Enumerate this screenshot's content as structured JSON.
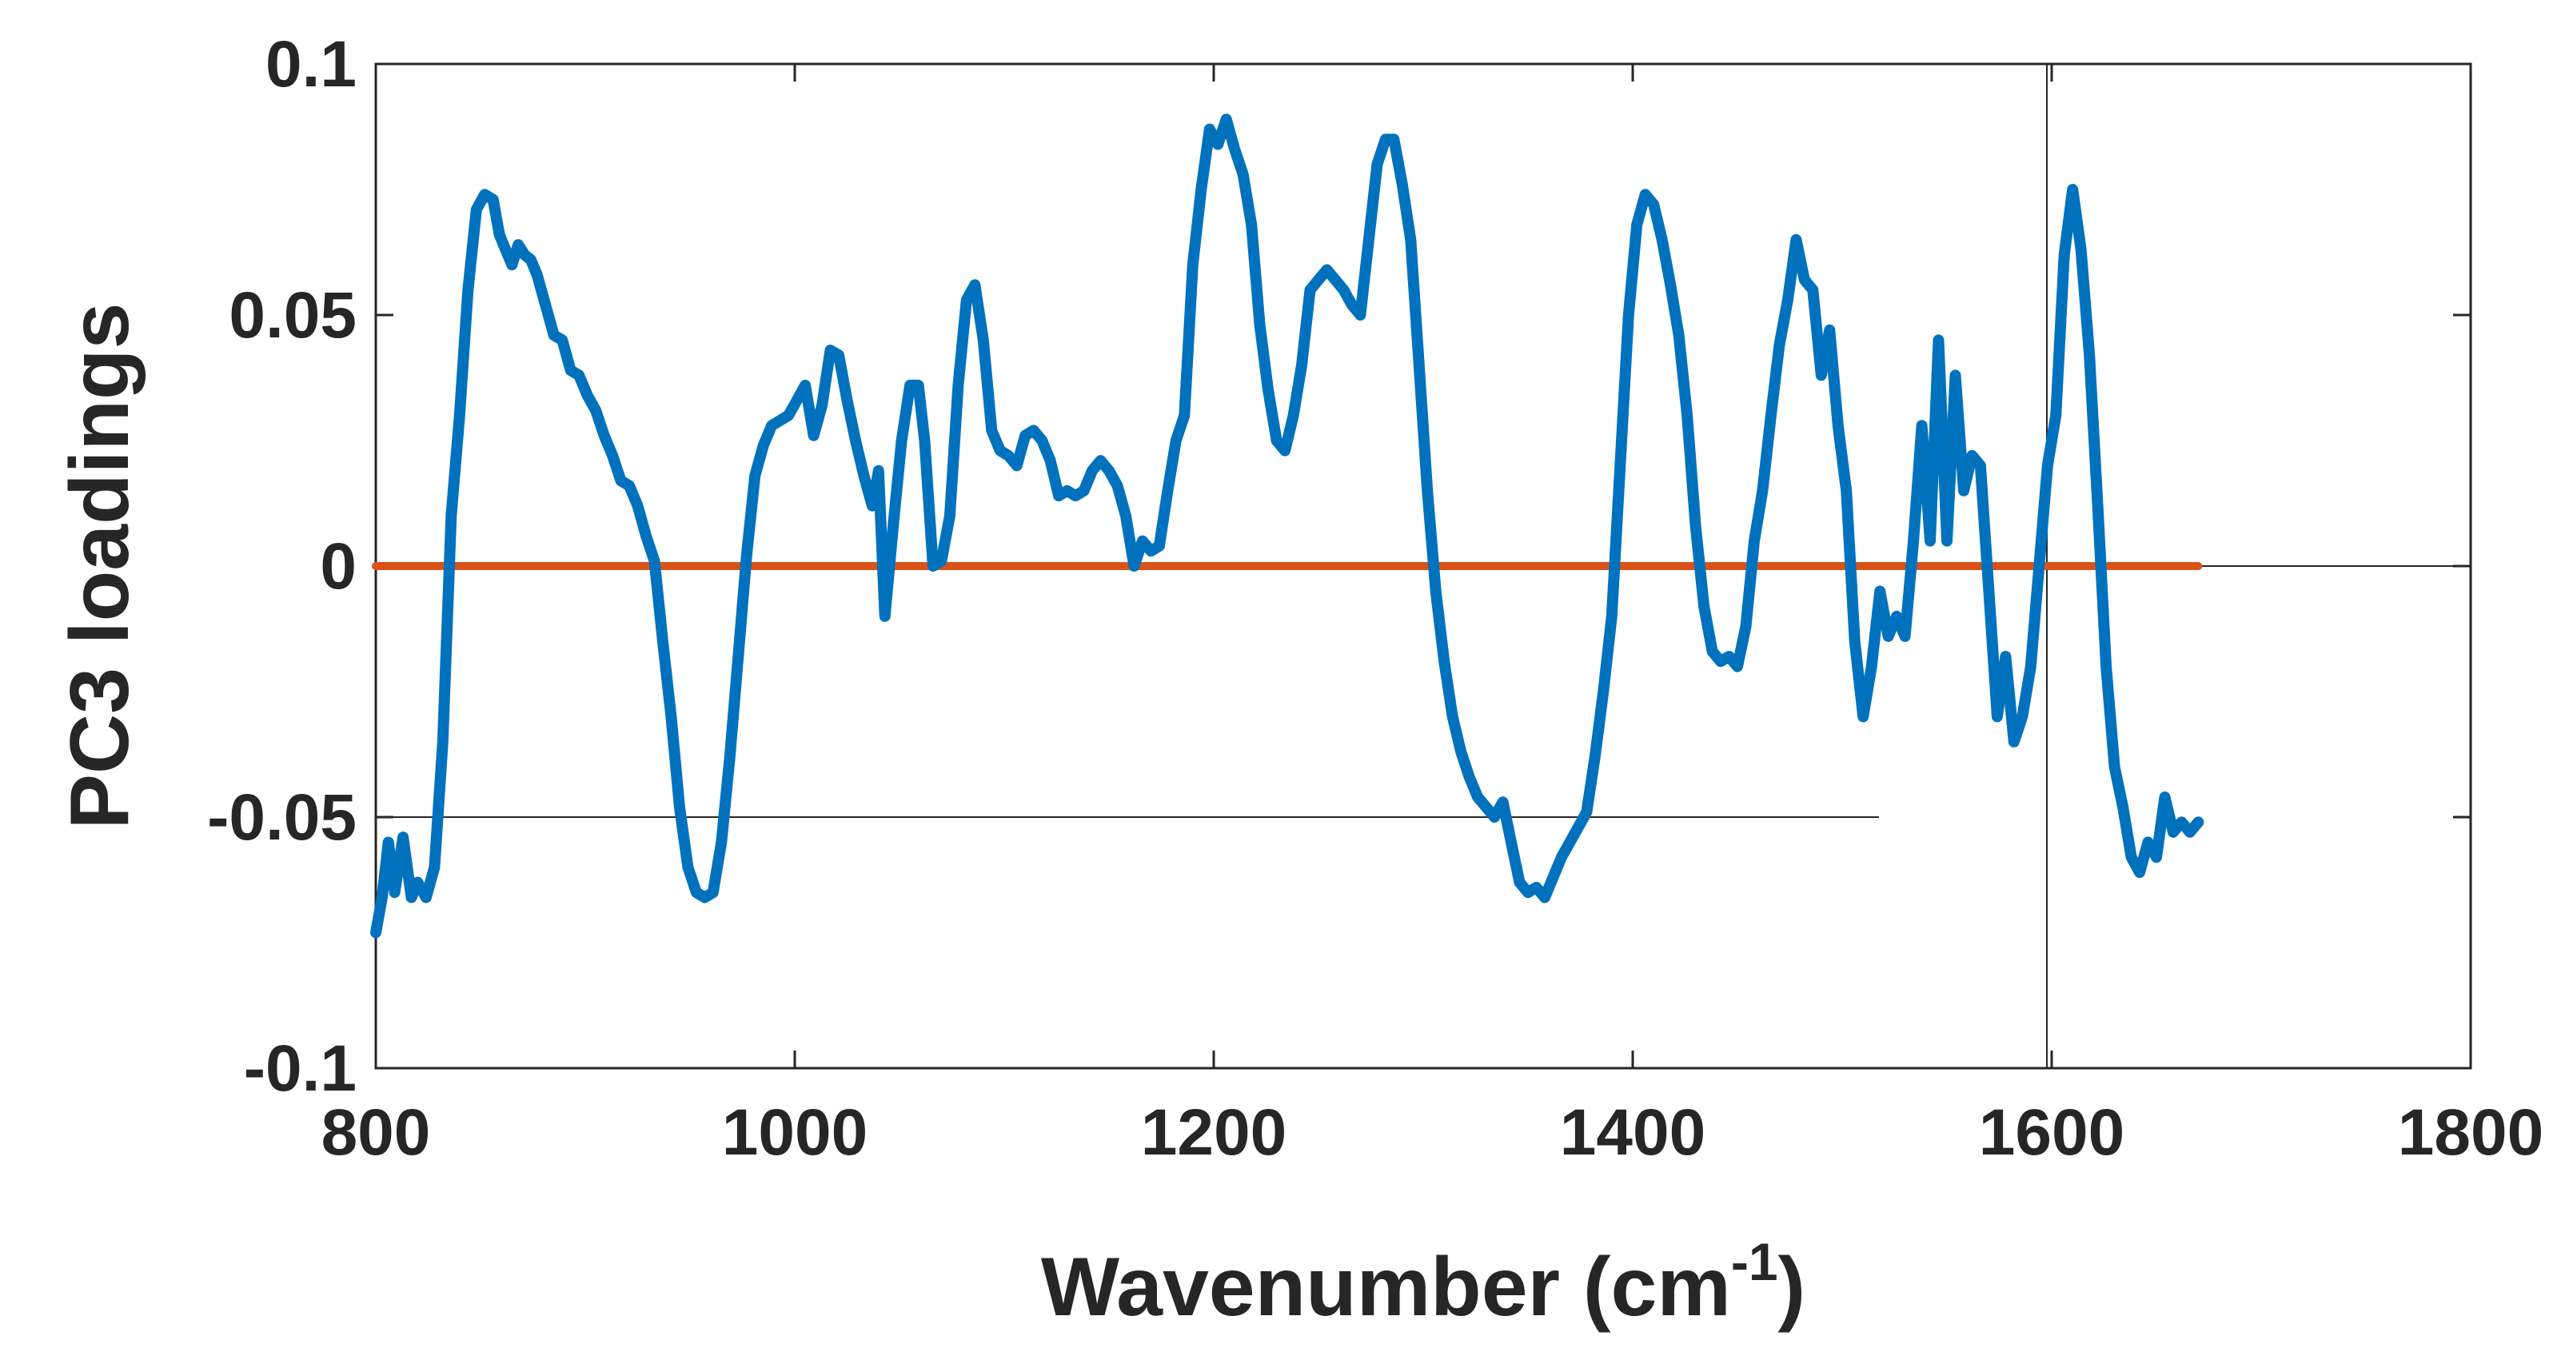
{
  "chart_data": {
    "type": "line",
    "title": "",
    "xlabel": "Wavenumber (cm",
    "xlabel_superscript": "-1",
    "xlabel_suffix": ")",
    "ylabel": "PC3 loadings",
    "xlim": [
      800,
      1800
    ],
    "ylim": [
      -0.1,
      0.1
    ],
    "x_ticks": [
      800,
      1000,
      1200,
      1400,
      1600,
      1800
    ],
    "y_ticks": [
      -0.1,
      -0.05,
      0,
      0.05,
      0.1
    ],
    "x_tick_labels": [
      "800",
      "1000",
      "1200",
      "1400",
      "1600",
      "1800"
    ],
    "y_tick_labels": [
      "-0.1",
      "-0.05",
      "0",
      "0.05",
      "0.1"
    ],
    "grid": false,
    "colors": {
      "loadings": "#0072BD",
      "zero_line": "#D95319",
      "axes": "#262626"
    },
    "series": [
      {
        "name": "",
        "color": "#0072BD",
        "points": [
          [
            800,
            -0.073
          ],
          [
            803,
            -0.066
          ],
          [
            806,
            -0.055
          ],
          [
            809,
            -0.065
          ],
          [
            813,
            -0.054
          ],
          [
            817,
            -0.066
          ],
          [
            820,
            -0.063
          ],
          [
            824,
            -0.066
          ],
          [
            828,
            -0.06
          ],
          [
            832,
            -0.035
          ],
          [
            836,
            0.01
          ],
          [
            840,
            0.03
          ],
          [
            844,
            0.055
          ],
          [
            848,
            0.071
          ],
          [
            852,
            0.074
          ],
          [
            856,
            0.073
          ],
          [
            859,
            0.066
          ],
          [
            862,
            0.063
          ],
          [
            865,
            0.06
          ],
          [
            868,
            0.064
          ],
          [
            871,
            0.062
          ],
          [
            874,
            0.061
          ],
          [
            877,
            0.058
          ],
          [
            881,
            0.052
          ],
          [
            885,
            0.046
          ],
          [
            889,
            0.045
          ],
          [
            893,
            0.039
          ],
          [
            897,
            0.038
          ],
          [
            901,
            0.034
          ],
          [
            905,
            0.031
          ],
          [
            909,
            0.026
          ],
          [
            913,
            0.022
          ],
          [
            917,
            0.017
          ],
          [
            921,
            0.016
          ],
          [
            925,
            0.012
          ],
          [
            929,
            0.006
          ],
          [
            933,
            0.001
          ],
          [
            937,
            -0.015
          ],
          [
            941,
            -0.03
          ],
          [
            945,
            -0.048
          ],
          [
            949,
            -0.06
          ],
          [
            953,
            -0.065
          ],
          [
            957,
            -0.066
          ],
          [
            961,
            -0.065
          ],
          [
            965,
            -0.055
          ],
          [
            969,
            -0.038
          ],
          [
            973,
            -0.018
          ],
          [
            977,
            0.002
          ],
          [
            981,
            0.018
          ],
          [
            985,
            0.024
          ],
          [
            989,
            0.028
          ],
          [
            993,
            0.029
          ],
          [
            997,
            0.03
          ],
          [
            1001,
            0.033
          ],
          [
            1005,
            0.036
          ],
          [
            1009,
            0.026
          ],
          [
            1013,
            0.032
          ],
          [
            1017,
            0.043
          ],
          [
            1021,
            0.042
          ],
          [
            1025,
            0.033
          ],
          [
            1029,
            0.025
          ],
          [
            1033,
            0.018
          ],
          [
            1037,
            0.012
          ],
          [
            1040,
            0.019
          ],
          [
            1043,
            -0.01
          ],
          [
            1047,
            0.008
          ],
          [
            1051,
            0.025
          ],
          [
            1055,
            0.036
          ],
          [
            1059,
            0.036
          ],
          [
            1062,
            0.025
          ],
          [
            1066,
            0.0
          ],
          [
            1070,
            0.001
          ],
          [
            1074,
            0.01
          ],
          [
            1078,
            0.036
          ],
          [
            1082,
            0.053
          ],
          [
            1086,
            0.056
          ],
          [
            1090,
            0.045
          ],
          [
            1094,
            0.027
          ],
          [
            1098,
            0.023
          ],
          [
            1102,
            0.022
          ],
          [
            1106,
            0.02
          ],
          [
            1110,
            0.026
          ],
          [
            1114,
            0.027
          ],
          [
            1118,
            0.025
          ],
          [
            1122,
            0.021
          ],
          [
            1126,
            0.014
          ],
          [
            1130,
            0.015
          ],
          [
            1134,
            0.014
          ],
          [
            1138,
            0.015
          ],
          [
            1142,
            0.019
          ],
          [
            1146,
            0.021
          ],
          [
            1150,
            0.019
          ],
          [
            1154,
            0.016
          ],
          [
            1158,
            0.01
          ],
          [
            1162,
            0.0
          ],
          [
            1166,
            0.005
          ],
          [
            1170,
            0.003
          ],
          [
            1174,
            0.004
          ],
          [
            1178,
            0.015
          ],
          [
            1182,
            0.025
          ],
          [
            1186,
            0.03
          ],
          [
            1190,
            0.06
          ],
          [
            1194,
            0.075
          ],
          [
            1198,
            0.087
          ],
          [
            1202,
            0.084
          ],
          [
            1206,
            0.089
          ],
          [
            1210,
            0.083
          ],
          [
            1214,
            0.078
          ],
          [
            1218,
            0.068
          ],
          [
            1222,
            0.048
          ],
          [
            1226,
            0.035
          ],
          [
            1230,
            0.025
          ],
          [
            1234,
            0.023
          ],
          [
            1238,
            0.03
          ],
          [
            1242,
            0.04
          ],
          [
            1246,
            0.055
          ],
          [
            1250,
            0.057
          ],
          [
            1254,
            0.059
          ],
          [
            1258,
            0.057
          ],
          [
            1262,
            0.055
          ],
          [
            1266,
            0.052
          ],
          [
            1270,
            0.05
          ],
          [
            1274,
            0.065
          ],
          [
            1278,
            0.08
          ],
          [
            1282,
            0.085
          ],
          [
            1286,
            0.085
          ],
          [
            1290,
            0.076
          ],
          [
            1294,
            0.065
          ],
          [
            1298,
            0.04
          ],
          [
            1302,
            0.015
          ],
          [
            1306,
            -0.005
          ],
          [
            1310,
            -0.019
          ],
          [
            1314,
            -0.03
          ],
          [
            1318,
            -0.037
          ],
          [
            1322,
            -0.042
          ],
          [
            1326,
            -0.046
          ],
          [
            1330,
            -0.048
          ],
          [
            1334,
            -0.05
          ],
          [
            1338,
            -0.047
          ],
          [
            1342,
            -0.055
          ],
          [
            1346,
            -0.063
          ],
          [
            1350,
            -0.065
          ],
          [
            1354,
            -0.064
          ],
          [
            1358,
            -0.066
          ],
          [
            1362,
            -0.062
          ],
          [
            1366,
            -0.058
          ],
          [
            1370,
            -0.055
          ],
          [
            1374,
            -0.052
          ],
          [
            1378,
            -0.049
          ],
          [
            1382,
            -0.038
          ],
          [
            1386,
            -0.025
          ],
          [
            1390,
            -0.01
          ],
          [
            1394,
            0.02
          ],
          [
            1398,
            0.05
          ],
          [
            1402,
            0.068
          ],
          [
            1406,
            0.074
          ],
          [
            1410,
            0.072
          ],
          [
            1414,
            0.065
          ],
          [
            1418,
            0.056
          ],
          [
            1422,
            0.046
          ],
          [
            1426,
            0.03
          ],
          [
            1430,
            0.008
          ],
          [
            1434,
            -0.008
          ],
          [
            1438,
            -0.017
          ],
          [
            1442,
            -0.019
          ],
          [
            1446,
            -0.018
          ],
          [
            1450,
            -0.02
          ],
          [
            1454,
            -0.012
          ],
          [
            1458,
            0.005
          ],
          [
            1462,
            0.015
          ],
          [
            1466,
            0.03
          ],
          [
            1470,
            0.044
          ],
          [
            1474,
            0.053
          ],
          [
            1478,
            0.065
          ],
          [
            1482,
            0.057
          ],
          [
            1486,
            0.055
          ],
          [
            1490,
            0.038
          ],
          [
            1494,
            0.047
          ],
          [
            1498,
            0.028
          ],
          [
            1502,
            0.015
          ],
          [
            1506,
            -0.015
          ],
          [
            1510,
            -0.03
          ],
          [
            1514,
            -0.02
          ],
          [
            1518,
            -0.005
          ],
          [
            1522,
            -0.014
          ],
          [
            1526,
            -0.01
          ],
          [
            1530,
            -0.014
          ],
          [
            1534,
            0.005
          ],
          [
            1538,
            0.028
          ],
          [
            1542,
            0.005
          ],
          [
            1546,
            0.045
          ],
          [
            1550,
            0.005
          ],
          [
            1554,
            0.038
          ],
          [
            1558,
            0.015
          ],
          [
            1562,
            0.022
          ],
          [
            1566,
            0.02
          ],
          [
            1570,
            -0.005
          ],
          [
            1574,
            -0.03
          ],
          [
            1578,
            -0.018
          ],
          [
            1582,
            -0.035
          ],
          [
            1586,
            -0.03
          ],
          [
            1590,
            -0.02
          ],
          [
            1594,
            0.0
          ],
          [
            1598,
            0.02
          ],
          [
            1602,
            0.03
          ],
          [
            1606,
            0.062
          ],
          [
            1610,
            0.075
          ],
          [
            1614,
            0.063
          ],
          [
            1618,
            0.042
          ],
          [
            1622,
            0.012
          ],
          [
            1626,
            -0.02
          ],
          [
            1630,
            -0.04
          ],
          [
            1634,
            -0.048
          ],
          [
            1638,
            -0.058
          ],
          [
            1642,
            -0.061
          ],
          [
            1646,
            -0.055
          ],
          [
            1650,
            -0.058
          ],
          [
            1654,
            -0.046
          ],
          [
            1658,
            -0.053
          ],
          [
            1662,
            -0.051
          ],
          [
            1666,
            -0.053
          ],
          [
            1670,
            -0.051
          ]
        ]
      },
      {
        "name": "",
        "color": "#D95319",
        "points": [
          [
            800,
            0
          ],
          [
            1670,
            0
          ]
        ]
      }
    ]
  }
}
